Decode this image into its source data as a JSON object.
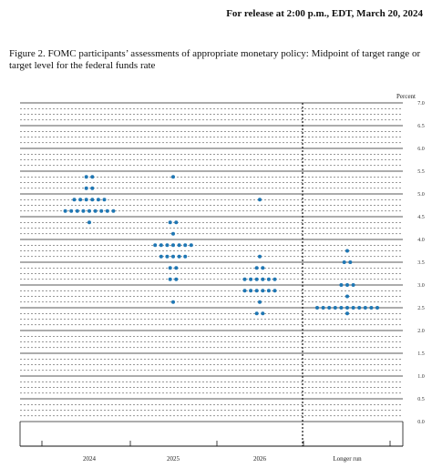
{
  "header": {
    "release": "For release at 2:00 p.m., EDT, March 20, 2024"
  },
  "figure": {
    "caption": "Figure 2. FOMC participants’ assessments of appropriate monetary policy: Midpoint of target range or target level for the federal funds rate"
  },
  "colors": {
    "dot": "#1f77b4"
  },
  "chart_data": {
    "type": "scatter",
    "title": "Figure 2. FOMC participants’ assessments of appropriate monetary policy: Midpoint of target range or target level for the federal funds rate",
    "ylabel": "Percent",
    "ylim": [
      0,
      7
    ],
    "ytick_step": 0.125,
    "ytick_labels": [
      "0.0",
      "0.5",
      "1.0",
      "1.5",
      "2.0",
      "2.5",
      "3.0",
      "3.5",
      "4.0",
      "4.5",
      "5.0",
      "5.5",
      "6.0",
      "6.5",
      "7.0"
    ],
    "categories": [
      "2024",
      "2025",
      "2026",
      "Longer run"
    ],
    "legend": "none",
    "grid": true,
    "divider_after_category": 2,
    "series": [
      {
        "category": "2024",
        "points": [
          {
            "y": 5.375,
            "count": 2
          },
          {
            "y": 5.125,
            "count": 2
          },
          {
            "y": 4.875,
            "count": 6
          },
          {
            "y": 4.625,
            "count": 9
          },
          {
            "y": 4.375,
            "count": 1
          }
        ]
      },
      {
        "category": "2025",
        "points": [
          {
            "y": 5.375,
            "count": 1
          },
          {
            "y": 4.375,
            "count": 2
          },
          {
            "y": 4.125,
            "count": 1
          },
          {
            "y": 3.875,
            "count": 7
          },
          {
            "y": 3.625,
            "count": 5
          },
          {
            "y": 3.375,
            "count": 2
          },
          {
            "y": 3.125,
            "count": 2
          },
          {
            "y": 2.625,
            "count": 1
          }
        ]
      },
      {
        "category": "2026",
        "points": [
          {
            "y": 4.875,
            "count": 1
          },
          {
            "y": 3.625,
            "count": 1
          },
          {
            "y": 3.375,
            "count": 2
          },
          {
            "y": 3.125,
            "count": 6
          },
          {
            "y": 2.875,
            "count": 6
          },
          {
            "y": 2.625,
            "count": 1
          },
          {
            "y": 2.375,
            "count": 2
          }
        ]
      },
      {
        "category": "Longer run",
        "points": [
          {
            "y": 3.75,
            "count": 1
          },
          {
            "y": 3.5,
            "count": 2
          },
          {
            "y": 3.0,
            "count": 3
          },
          {
            "y": 2.75,
            "count": 1
          },
          {
            "y": 2.5,
            "count": 11
          },
          {
            "y": 2.375,
            "count": 1
          }
        ]
      }
    ]
  }
}
